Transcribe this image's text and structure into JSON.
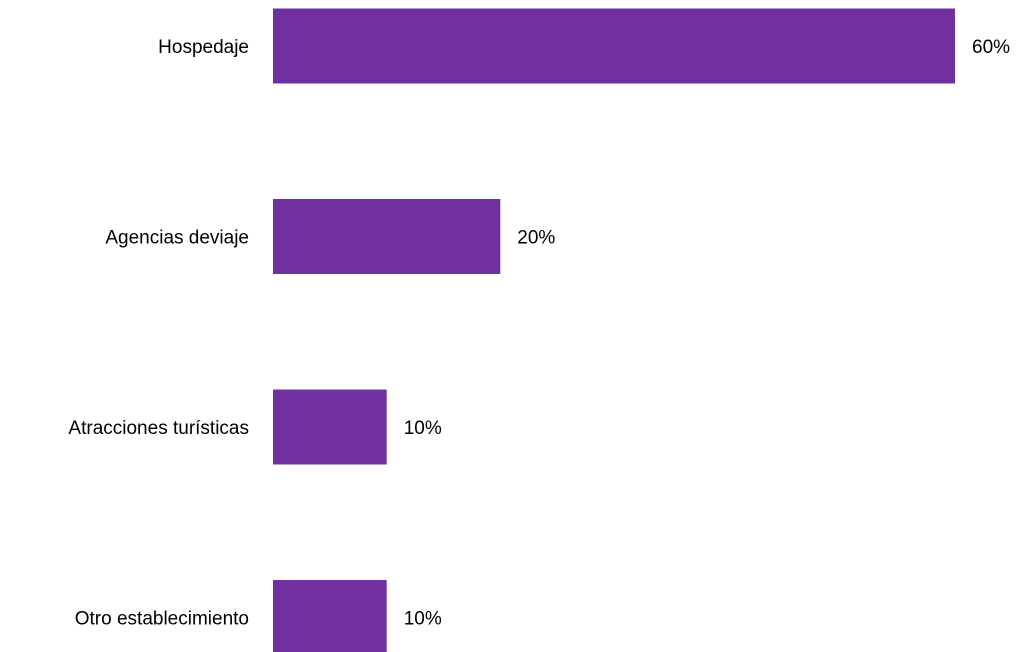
{
  "chart_data": {
    "type": "bar",
    "orientation": "horizontal",
    "title": "",
    "xlabel": "",
    "ylabel": "",
    "categories": [
      "Hospedaje",
      "Agencias deviaje",
      "Atracciones turísticas",
      "Otro establecimiento"
    ],
    "values": [
      60,
      20,
      10,
      10
    ],
    "value_labels": [
      "60%",
      "20%",
      "10%",
      "10%"
    ],
    "xlim": [
      0,
      60
    ],
    "grid": false,
    "legend": "none",
    "bar_color": "#7030a0"
  }
}
